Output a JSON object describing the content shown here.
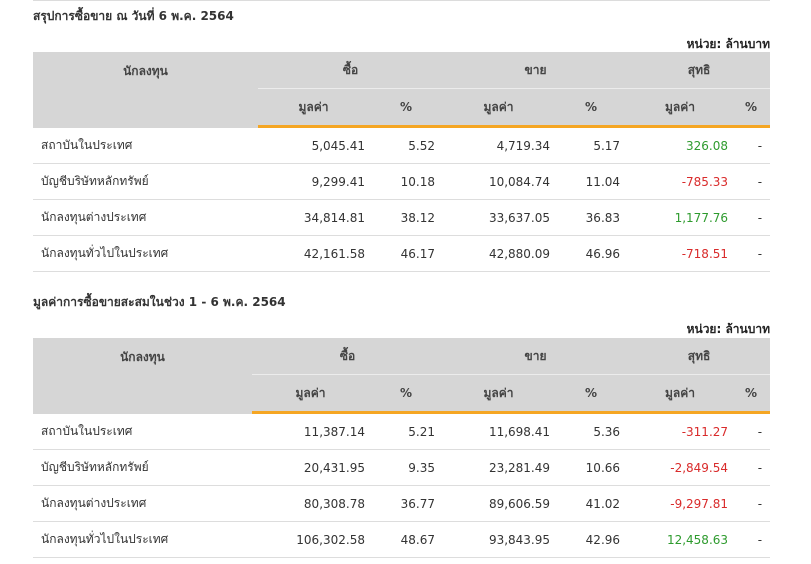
{
  "sections": [
    {
      "title": "สรุปการซื้อขาย ณ วันที่ 6 พ.ค. 2564",
      "unit": "หน่วย: ล้านบาท",
      "headers": {
        "investor": "นักลงทุน",
        "buy": "ซื้อ",
        "sell": "ขาย",
        "net": "สุทธิ",
        "value": "มูลค่า",
        "percent": "%"
      },
      "rows": [
        {
          "name": "สถาบันในประเทศ",
          "buy_value": "5,045.41",
          "buy_pct": "5.52",
          "sell_value": "4,719.34",
          "sell_pct": "5.17",
          "net_value": "326.08",
          "net_pct": "-",
          "net_sign": "pos"
        },
        {
          "name": "บัญชีบริษัทหลักทรัพย์",
          "buy_value": "9,299.41",
          "buy_pct": "10.18",
          "sell_value": "10,084.74",
          "sell_pct": "11.04",
          "net_value": "-785.33",
          "net_pct": "-",
          "net_sign": "neg"
        },
        {
          "name": "นักลงทุนต่างประเทศ",
          "buy_value": "34,814.81",
          "buy_pct": "38.12",
          "sell_value": "33,637.05",
          "sell_pct": "36.83",
          "net_value": "1,177.76",
          "net_pct": "-",
          "net_sign": "pos"
        },
        {
          "name": "นักลงทุนทั่วไปในประเทศ",
          "buy_value": "42,161.58",
          "buy_pct": "46.17",
          "sell_value": "42,880.09",
          "sell_pct": "46.96",
          "net_value": "-718.51",
          "net_pct": "-",
          "net_sign": "neg"
        }
      ]
    },
    {
      "title": "มูลค่าการซื้อขายสะสมในช่วง 1 - 6 พ.ค. 2564",
      "unit": "หน่วย: ล้านบาท",
      "headers": {
        "investor": "นักลงทุน",
        "buy": "ซื้อ",
        "sell": "ขาย",
        "net": "สุทธิ",
        "value": "มูลค่า",
        "percent": "%"
      },
      "rows": [
        {
          "name": "สถาบันในประเทศ",
          "buy_value": "11,387.14",
          "buy_pct": "5.21",
          "sell_value": "11,698.41",
          "sell_pct": "5.36",
          "net_value": "-311.27",
          "net_pct": "-",
          "net_sign": "neg"
        },
        {
          "name": "บัญชีบริษัทหลักทรัพย์",
          "buy_value": "20,431.95",
          "buy_pct": "9.35",
          "sell_value": "23,281.49",
          "sell_pct": "10.66",
          "net_value": "-2,849.54",
          "net_pct": "-",
          "net_sign": "neg"
        },
        {
          "name": "นักลงทุนต่างประเทศ",
          "buy_value": "80,308.78",
          "buy_pct": "36.77",
          "sell_value": "89,606.59",
          "sell_pct": "41.02",
          "net_value": "-9,297.81",
          "net_pct": "-",
          "net_sign": "neg"
        },
        {
          "name": "นักลงทุนทั่วไปในประเทศ",
          "buy_value": "106,302.58",
          "buy_pct": "48.67",
          "sell_value": "93,843.95",
          "sell_pct": "42.96",
          "net_value": "12,458.63",
          "net_pct": "-",
          "net_sign": "pos"
        }
      ]
    }
  ],
  "colors": {
    "positive": "#2e9b2e",
    "negative": "#d92b2b",
    "header_bg": "#d6d6d6",
    "accent_underline": "#f5a623"
  }
}
